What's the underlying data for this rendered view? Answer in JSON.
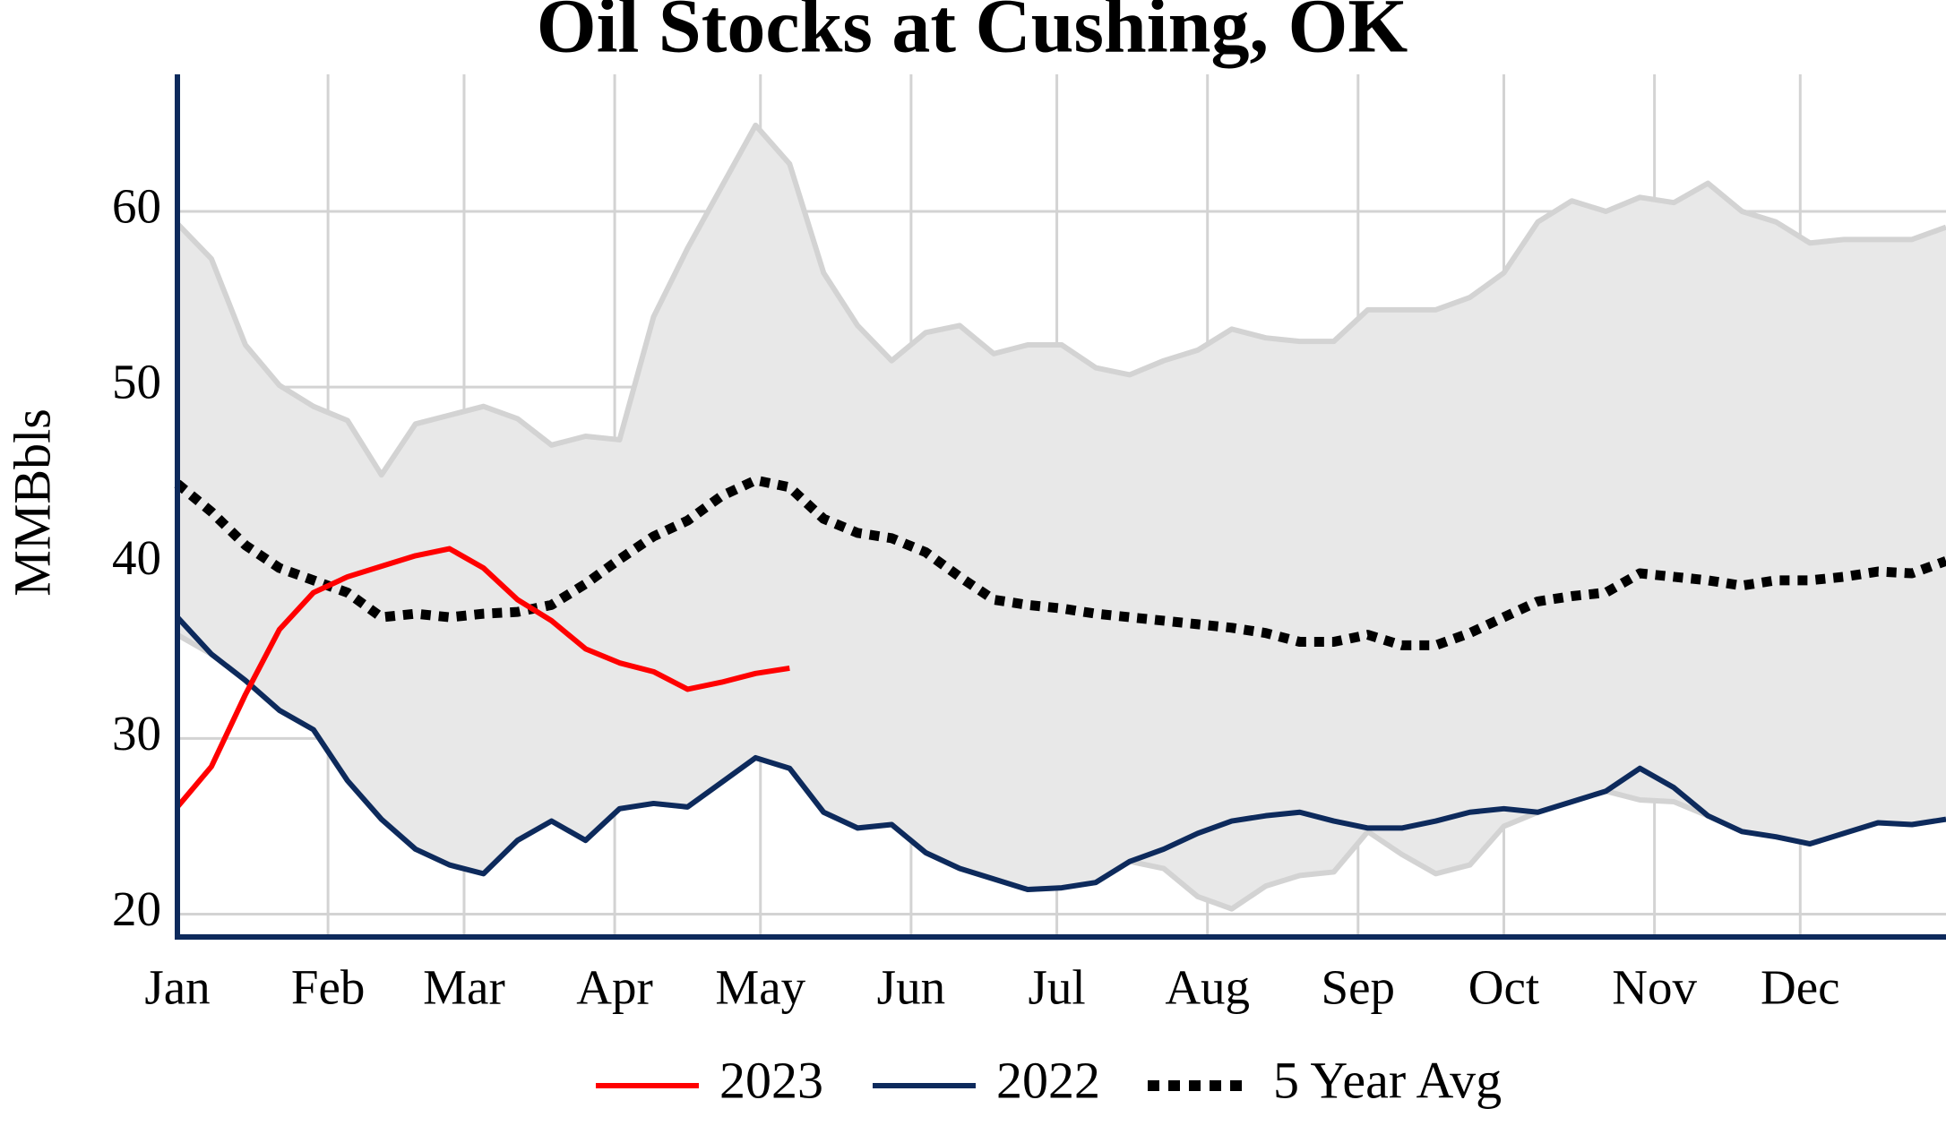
{
  "chart_data": {
    "type": "line",
    "title": "Oil Stocks at Cushing, OK",
    "y_label": "MMBbls",
    "x": [
      0,
      7,
      14,
      21,
      28,
      35,
      42,
      49,
      56,
      63,
      70,
      77,
      84,
      91,
      98,
      105,
      112,
      119,
      126,
      133,
      140,
      147,
      154,
      161,
      168,
      175,
      182,
      189,
      196,
      203,
      210,
      217,
      224,
      231,
      238,
      245,
      252,
      259,
      266,
      273,
      280,
      287,
      294,
      301,
      308,
      315,
      322,
      329,
      336,
      343,
      350,
      357,
      364
    ],
    "xlim": [
      0,
      364
    ],
    "xticks": [
      {
        "value": 0,
        "label": "Jan"
      },
      {
        "value": 31,
        "label": "Feb"
      },
      {
        "value": 59,
        "label": "Mar"
      },
      {
        "value": 90,
        "label": "Apr"
      },
      {
        "value": 120,
        "label": "May"
      },
      {
        "value": 151,
        "label": "Jun"
      },
      {
        "value": 181,
        "label": "Jul"
      },
      {
        "value": 212,
        "label": "Aug"
      },
      {
        "value": 243,
        "label": "Sep"
      },
      {
        "value": 273,
        "label": "Oct"
      },
      {
        "value": 304,
        "label": "Nov"
      },
      {
        "value": 334,
        "label": "Dec"
      }
    ],
    "ylim": [
      18.7,
      67.8
    ],
    "yticks": [
      20,
      30,
      40,
      50,
      60
    ],
    "grid": true,
    "range": {
      "fill": "#e8e8e8",
      "color": "#d3d3d3",
      "upper": [
        59.3,
        57.3,
        52.4,
        50.1,
        48.9,
        48.1,
        45.0,
        47.9,
        48.4,
        48.9,
        48.2,
        46.7,
        47.2,
        47.0,
        54.0,
        57.9,
        61.4,
        64.9,
        62.7,
        56.5,
        53.5,
        51.5,
        53.1,
        53.5,
        51.9,
        52.4,
        52.4,
        51.1,
        50.7,
        51.5,
        52.1,
        53.3,
        52.8,
        52.6,
        52.6,
        54.4,
        54.4,
        54.4,
        55.1,
        56.5,
        59.4,
        60.6,
        60.0,
        60.8,
        60.5,
        61.6,
        60.0,
        59.4,
        58.2,
        58.4,
        58.4,
        58.4,
        59.1
      ],
      "lower": [
        35.9,
        34.8,
        33.3,
        31.6,
        30.5,
        27.6,
        25.4,
        23.7,
        22.8,
        22.3,
        24.2,
        25.3,
        24.2,
        26.0,
        26.3,
        26.1,
        27.5,
        28.9,
        28.3,
        25.8,
        24.9,
        25.1,
        23.5,
        22.6,
        22.0,
        21.4,
        21.5,
        21.8,
        23.0,
        22.6,
        21.0,
        20.3,
        21.6,
        22.2,
        22.4,
        24.7,
        23.4,
        22.3,
        22.8,
        25.0,
        25.8,
        26.4,
        27.0,
        26.5,
        26.4,
        25.6,
        24.7,
        24.4,
        24.0,
        24.6,
        25.2,
        25.1,
        25.4
      ]
    },
    "series": [
      {
        "name": "2023",
        "color": "#ff0000",
        "dash": false,
        "values": [
          26.1,
          28.4,
          32.5,
          36.2,
          38.3,
          39.2,
          39.8,
          40.4,
          40.8,
          39.7,
          37.9,
          36.7,
          35.1,
          34.3,
          33.8,
          32.8,
          33.2,
          33.7,
          34.0,
          null,
          null,
          null,
          null,
          null,
          null,
          null,
          null,
          null,
          null,
          null,
          null,
          null,
          null,
          null,
          null,
          null,
          null,
          null,
          null,
          null,
          null,
          null,
          null,
          null,
          null,
          null,
          null,
          null,
          null,
          null,
          null,
          null,
          null
        ]
      },
      {
        "name": "2022",
        "color": "#0d2a5c",
        "dash": false,
        "values": [
          36.9,
          34.8,
          33.3,
          31.6,
          30.5,
          27.6,
          25.4,
          23.7,
          22.8,
          22.3,
          24.2,
          25.3,
          24.2,
          26.0,
          26.3,
          26.1,
          27.5,
          28.9,
          28.3,
          25.8,
          24.9,
          25.1,
          23.5,
          22.6,
          22.0,
          21.4,
          21.5,
          21.8,
          23.0,
          23.7,
          24.6,
          25.3,
          25.6,
          25.8,
          25.3,
          24.9,
          24.9,
          25.3,
          25.8,
          26.0,
          25.8,
          26.4,
          27.0,
          28.3,
          27.2,
          25.6,
          24.7,
          24.4,
          24.0,
          24.6,
          25.2,
          25.1,
          25.4
        ]
      },
      {
        "name": "5 Year Avg",
        "color": "#000000",
        "dash": true,
        "values": [
          44.5,
          42.9,
          41.0,
          39.7,
          39.0,
          38.3,
          36.9,
          37.1,
          36.9,
          37.1,
          37.2,
          37.6,
          38.8,
          40.2,
          41.5,
          42.4,
          43.8,
          44.7,
          44.3,
          42.5,
          41.7,
          41.4,
          40.6,
          39.2,
          37.9,
          37.6,
          37.4,
          37.1,
          36.9,
          36.7,
          36.5,
          36.3,
          36.0,
          35.5,
          35.5,
          35.9,
          35.3,
          35.3,
          36.0,
          36.9,
          37.8,
          38.1,
          38.3,
          39.4,
          39.2,
          39.0,
          38.7,
          39.0,
          39.0,
          39.2,
          39.5,
          39.4,
          40.1
        ]
      }
    ],
    "axis_color": "#0d2a5c"
  }
}
